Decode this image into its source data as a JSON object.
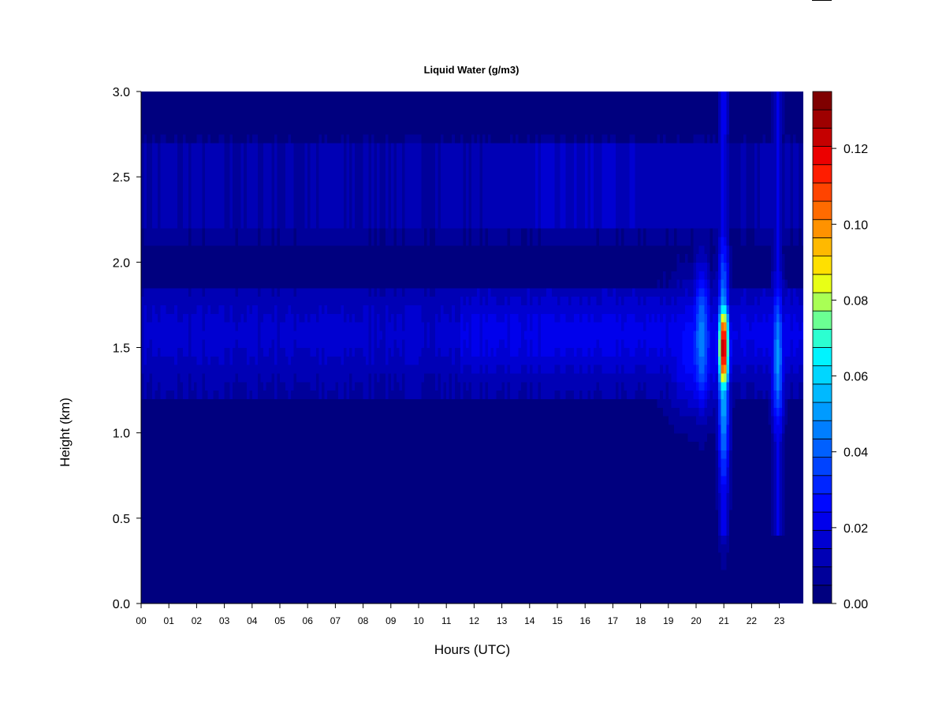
{
  "chart_data": {
    "type": "heatmap",
    "title": "Liquid Water (g/m3)",
    "xlabel": "Hours (UTC)",
    "ylabel": "Height (km)",
    "xlim": [
      0,
      23.85
    ],
    "ylim": [
      0.0,
      3.0
    ],
    "x_ticks": [
      "00",
      "01",
      "02",
      "03",
      "04",
      "05",
      "06",
      "07",
      "08",
      "09",
      "10",
      "11",
      "12",
      "13",
      "14",
      "15",
      "16",
      "17",
      "18",
      "19",
      "20",
      "21",
      "22",
      "23"
    ],
    "y_ticks": [
      "0.0",
      "0.5",
      "1.0",
      "1.5",
      "2.0",
      "2.5",
      "3.0"
    ],
    "colorbar": {
      "min": 0.0,
      "max": 0.135,
      "ticks": [
        "0.00",
        "0.02",
        "0.04",
        "0.06",
        "0.08",
        "0.10",
        "0.12"
      ],
      "tick_values": [
        0.0,
        0.02,
        0.04,
        0.06,
        0.08,
        0.1,
        0.12
      ],
      "colors": [
        "#00007F",
        "#00009A",
        "#0000B5",
        "#0000D1",
        "#0000EC",
        "#0008FF",
        "#0025FF",
        "#0043FF",
        "#0060FF",
        "#007EFF",
        "#009BFF",
        "#00B9FF",
        "#00D6FF",
        "#00F4FF",
        "#2CFFD1",
        "#6BFF93",
        "#A9FF55",
        "#E8FF16",
        "#FFE000",
        "#FFB900",
        "#FF9200",
        "#FF6B00",
        "#FF4400",
        "#FF1D00",
        "#EC0000",
        "#C50000",
        "#9E0000",
        "#7F0000"
      ]
    },
    "layers": [
      {
        "name": "background",
        "value": 0.001
      },
      {
        "name": "layer 2.2-2.65 km",
        "y_range": [
          2.2,
          2.65
        ],
        "value": 0.012
      },
      {
        "name": "layer 1.25-1.85 km",
        "y_range": [
          1.25,
          1.85
        ],
        "value": 0.014
      }
    ],
    "peaks": [
      {
        "hour": 21.0,
        "height": 1.5,
        "value": 0.13
      },
      {
        "hour": 22.95,
        "height": 1.5,
        "value": 0.05
      },
      {
        "hour": 20.2,
        "height": 1.55,
        "value": 0.045
      }
    ]
  }
}
